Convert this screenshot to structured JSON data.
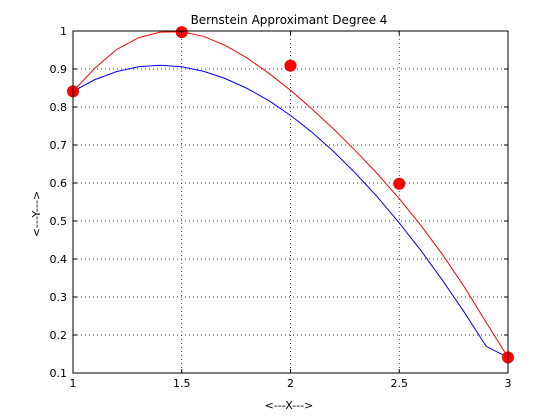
{
  "chart_data": {
    "type": "line",
    "title": "Bernstein Approximant Degree 4",
    "xlabel": "<---X--->",
    "ylabel": "<---Y--->",
    "xlim": [
      1,
      3
    ],
    "ylim": [
      0.1,
      1
    ],
    "x_ticks": [
      1,
      1.5,
      2,
      2.5,
      3
    ],
    "x_tick_labels": [
      "1",
      "1.5",
      "2",
      "2.5",
      "3"
    ],
    "y_ticks": [
      0.1,
      0.2,
      0.3,
      0.4,
      0.5,
      0.6,
      0.7,
      0.8,
      0.9,
      1
    ],
    "y_tick_labels": [
      "0.1",
      "0.2",
      "0.3",
      "0.4",
      "0.5",
      "0.6",
      "0.7",
      "0.8",
      "0.9",
      "1"
    ],
    "grid": true,
    "legend": "none",
    "series": [
      {
        "color": "#ff0000",
        "style": "line",
        "x": [
          1,
          1.1,
          1.2,
          1.3,
          1.4,
          1.5,
          1.6,
          1.7,
          1.8,
          1.9,
          2,
          2.1,
          2.2,
          2.3,
          2.4,
          2.5,
          2.6,
          2.7,
          2.8,
          2.9,
          3
        ],
        "y": [
          0.841,
          0.902,
          0.951,
          0.982,
          0.997,
          0.998,
          0.986,
          0.962,
          0.929,
          0.889,
          0.844,
          0.794,
          0.741,
          0.684,
          0.624,
          0.559,
          0.488,
          0.411,
          0.326,
          0.233,
          0.141
        ]
      },
      {
        "color": "#0000ff",
        "style": "line",
        "x": [
          1,
          1.1,
          1.2,
          1.3,
          1.4,
          1.5,
          1.6,
          1.7,
          1.8,
          1.9,
          2,
          2.1,
          2.2,
          2.3,
          2.4,
          2.5,
          2.6,
          2.7,
          2.8,
          2.9,
          3
        ],
        "y": [
          0.841,
          0.872,
          0.893,
          0.906,
          0.91,
          0.906,
          0.894,
          0.875,
          0.849,
          0.817,
          0.778,
          0.733,
          0.682,
          0.625,
          0.563,
          0.495,
          0.422,
          0.343,
          0.259,
          0.17,
          0.141
        ]
      },
      {
        "color": "#ff0000",
        "style": "markers",
        "x": [
          1,
          1.5,
          2,
          2.5,
          3
        ],
        "y": [
          0.841,
          0.997,
          0.909,
          0.598,
          0.141
        ]
      }
    ]
  }
}
